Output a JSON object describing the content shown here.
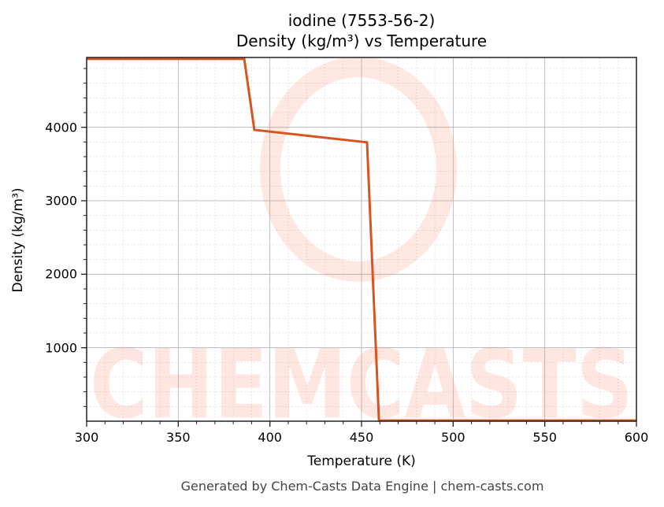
{
  "chart_data": {
    "type": "line",
    "title": "iodine (7553-56-2)",
    "subtitle": "Density (kg/m³) vs Temperature",
    "xlabel": "Temperature (K)",
    "ylabel": "Density (kg/m³)",
    "xlim": [
      300,
      600
    ],
    "ylim": [
      0,
      4950
    ],
    "grid": true,
    "x_ticks": [
      "300",
      "350",
      "400",
      "450",
      "500",
      "550",
      "600"
    ],
    "y_ticks": [
      "1000",
      "2000",
      "3000",
      "4000"
    ],
    "series": [
      {
        "name": "Density",
        "color": "#d9531e",
        "x": [
          300,
          386,
          391.5,
          453,
          459.5,
          600
        ],
        "y": [
          4930,
          4930,
          3965,
          3795,
          10,
          10
        ]
      }
    ],
    "watermark": "CHEMCASTS"
  },
  "footer": "Generated by Chem-Casts Data Engine | chem-casts.com"
}
